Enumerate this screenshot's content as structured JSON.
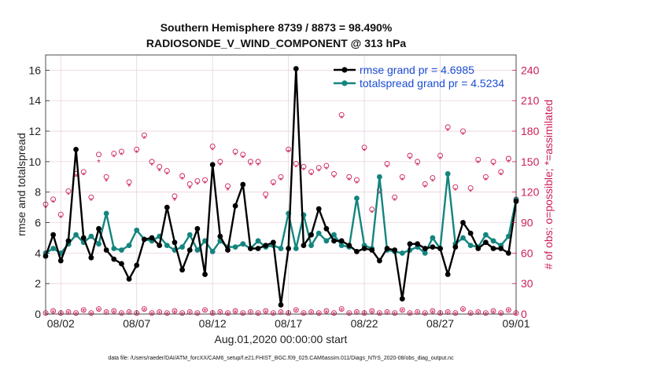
{
  "chart_data": {
    "type": "line",
    "title_line1": "Southern Hemisphere 8739 / 8873 = 98.490%",
    "title_line2": "RADIOSONDE_V_WIND_COMPONENT @ 313 hPa",
    "xlabel": "Aug.01,2020 00:00:00 start",
    "ylabel_left": "rmse and totalspread",
    "ylabel_right": "# of obs: o=possible; *=assimilated",
    "footer": "data file: /Users/raeder/DAI/ATM_forcXX/CAM6_setup/f.e21.FHIST_BGC.f09_025.CAM6assim.011/Diags_NTrS_2020-08/obs_diag_output.nc",
    "x_ticks": [
      "08/02",
      "08/07",
      "08/12",
      "08/17",
      "08/22",
      "08/27",
      "09/01"
    ],
    "x_tick_days": [
      1,
      6,
      11,
      16,
      21,
      26,
      31
    ],
    "xlim": [
      0,
      31
    ],
    "ylim_left": [
      0,
      17
    ],
    "y_ticks_left": [
      "0",
      "2",
      "4",
      "6",
      "8",
      "10",
      "12",
      "14",
      "16"
    ],
    "ylim_right": [
      0,
      255
    ],
    "y_ticks_right": [
      "0",
      "30",
      "60",
      "90",
      "120",
      "150",
      "180",
      "210",
      "240"
    ],
    "legend": {
      "rmse": "rmse grand pr = 4.6985",
      "spread": "totalspread grand pr = 4.5234"
    },
    "colors": {
      "rmse": "#000000",
      "spread": "#14857e",
      "obs": "#cc1f55"
    },
    "series": [
      {
        "name": "rmse",
        "x": [
          0.0,
          0.5,
          1.0,
          1.5,
          2.0,
          2.5,
          3.0,
          3.5,
          4.0,
          4.5,
          5.0,
          5.5,
          6.0,
          6.5,
          7.0,
          7.5,
          8.0,
          8.5,
          9.0,
          9.5,
          10.0,
          10.5,
          11.0,
          11.5,
          12.0,
          12.5,
          13.0,
          13.5,
          14.0,
          14.5,
          15.0,
          15.5,
          16.0,
          16.5,
          17.0,
          17.5,
          18.0,
          18.5,
          19.0,
          19.5,
          20.0,
          20.5,
          21.0,
          21.5,
          22.0,
          22.5,
          23.0,
          23.5,
          24.0,
          24.5,
          25.0,
          25.5,
          26.0,
          26.5,
          27.0,
          27.5,
          28.0,
          28.5,
          29.0,
          29.5,
          30.0,
          30.5,
          31.0
        ],
        "values": [
          3.8,
          5.2,
          3.5,
          4.8,
          10.8,
          5.0,
          3.7,
          5.6,
          4.2,
          3.6,
          3.3,
          2.3,
          3.2,
          4.9,
          5.0,
          4.5,
          7.0,
          4.7,
          2.9,
          4.2,
          5.6,
          2.6,
          9.8,
          5.1,
          4.2,
          7.1,
          8.5,
          4.3,
          4.3,
          4.5,
          4.7,
          0.6,
          4.3,
          16.1,
          4.5,
          5.2,
          6.9,
          5.6,
          4.8,
          4.8,
          4.5,
          4.1,
          4.3,
          4.2,
          3.5,
          4.3,
          4.2,
          1.0,
          4.6,
          4.6,
          4.3,
          4.4,
          4.3,
          2.6,
          4.4,
          6.0,
          5.3,
          4.3,
          4.7,
          4.3,
          4.3,
          4.0,
          7.4
        ]
      },
      {
        "name": "totalspread",
        "x": [
          0.0,
          0.5,
          1.0,
          1.5,
          2.0,
          2.5,
          3.0,
          3.5,
          4.0,
          4.5,
          5.0,
          5.5,
          6.0,
          6.5,
          7.0,
          7.5,
          8.0,
          8.5,
          9.0,
          9.5,
          10.0,
          10.5,
          11.0,
          11.5,
          12.0,
          12.5,
          13.0,
          13.5,
          14.0,
          14.5,
          15.0,
          15.5,
          16.0,
          16.5,
          17.0,
          17.5,
          18.0,
          18.5,
          19.0,
          19.5,
          20.0,
          20.5,
          21.0,
          21.5,
          22.0,
          22.5,
          23.0,
          23.5,
          24.0,
          24.5,
          25.0,
          25.5,
          26.0,
          26.5,
          27.0,
          27.5,
          28.0,
          28.5,
          29.0,
          29.5,
          30.0,
          30.5,
          31.0
        ],
        "values": [
          4.0,
          4.3,
          4.0,
          4.6,
          5.2,
          4.7,
          5.1,
          4.6,
          6.6,
          4.3,
          4.2,
          4.5,
          5.5,
          4.9,
          4.8,
          5.1,
          4.5,
          4.2,
          4.4,
          5.2,
          4.2,
          4.8,
          4.1,
          4.8,
          4.4,
          4.4,
          4.6,
          4.3,
          4.8,
          4.4,
          4.5,
          4.3,
          6.6,
          4.3,
          6.5,
          4.5,
          5.3,
          4.8,
          5.2,
          4.5,
          4.4,
          7.6,
          4.5,
          4.3,
          9.0,
          4.2,
          4.1,
          4.0,
          4.2,
          4.4,
          4.0,
          5.0,
          4.3,
          9.2,
          4.6,
          5.0,
          4.5,
          4.4,
          5.2,
          4.8,
          4.5,
          5.1,
          7.5
        ]
      },
      {
        "name": "obs_possible",
        "axis": "right",
        "x": [
          0.0,
          0.5,
          1.0,
          1.5,
          2.0,
          2.5,
          3.0,
          3.5,
          4.0,
          4.5,
          5.0,
          5.5,
          6.0,
          6.5,
          7.0,
          7.5,
          8.0,
          8.5,
          9.0,
          9.5,
          10.0,
          10.5,
          11.0,
          11.5,
          12.0,
          12.5,
          13.0,
          13.5,
          14.0,
          14.5,
          15.0,
          15.5,
          16.0,
          16.5,
          17.0,
          17.5,
          18.0,
          18.5,
          19.0,
          19.5,
          20.0,
          20.5,
          21.0,
          21.5,
          22.0,
          22.5,
          23.0,
          23.5,
          24.0,
          24.5,
          25.0,
          25.5,
          26.0,
          26.5,
          27.0,
          27.5,
          28.0,
          28.5,
          29.0,
          29.5,
          30.0,
          30.5,
          31.0
        ],
        "values": [
          108,
          113,
          98,
          121,
          138,
          140,
          115,
          157,
          135,
          158,
          160,
          130,
          162,
          176,
          150,
          145,
          141,
          116,
          136,
          128,
          131,
          132,
          165,
          150,
          126,
          160,
          157,
          150,
          150,
          118,
          130,
          135,
          162,
          148,
          145,
          140,
          144,
          146,
          138,
          196,
          135,
          132,
          164,
          103,
          122,
          148,
          115,
          135,
          156,
          150,
          128,
          134,
          156,
          184,
          125,
          180,
          124,
          152,
          135,
          150,
          140,
          153,
          113
        ]
      },
      {
        "name": "obs_assimilated",
        "axis": "right",
        "x": [
          0.0,
          0.5,
          1.0,
          1.5,
          2.0,
          2.5,
          3.0,
          3.5,
          4.0,
          4.5,
          5.0,
          5.5,
          6.0,
          6.5,
          7.0,
          7.5,
          8.0,
          8.5,
          9.0,
          9.5,
          10.0,
          10.5,
          11.0,
          11.5,
          12.0,
          12.5,
          13.0,
          13.5,
          14.0,
          14.5,
          15.0,
          15.5,
          16.0,
          16.5,
          17.0,
          17.5,
          18.0,
          18.5,
          19.0,
          19.5,
          20.0,
          20.5,
          21.0,
          21.5,
          22.0,
          22.5,
          23.0,
          23.5,
          24.0,
          24.5,
          25.0,
          25.5,
          26.0,
          26.5,
          27.0,
          27.5,
          28.0,
          28.5,
          29.0,
          29.5,
          30.0,
          30.5,
          31.0
        ],
        "values": [
          105,
          110,
          95,
          118,
          136,
          137,
          112,
          150,
          131,
          155,
          157,
          126,
          159,
          173,
          147,
          141,
          138,
          112,
          133,
          124,
          128,
          129,
          162,
          147,
          122,
          157,
          154,
          147,
          147,
          114,
          127,
          132,
          160,
          145,
          142,
          137,
          141,
          143,
          135,
          193,
          132,
          129,
          161,
          100,
          119,
          145,
          112,
          132,
          153,
          147,
          125,
          131,
          153,
          181,
          122,
          177,
          121,
          149,
          132,
          147,
          137,
          150,
          110
        ]
      },
      {
        "name": "obs_possible_low",
        "axis": "right",
        "x": [
          0.0,
          0.5,
          1.0,
          1.5,
          2.0,
          2.5,
          3.0,
          3.5,
          4.0,
          4.5,
          5.0,
          5.5,
          6.0,
          6.5,
          7.0,
          7.5,
          8.0,
          8.5,
          9.0,
          9.5,
          10.0,
          10.5,
          11.0,
          11.5,
          12.0,
          12.5,
          13.0,
          13.5,
          14.0,
          14.5,
          15.0,
          15.5,
          16.0,
          16.5,
          17.0,
          17.5,
          18.0,
          18.5,
          19.0,
          19.5,
          20.0,
          20.5,
          21.0,
          21.5,
          22.0,
          22.5,
          23.0,
          23.5,
          24.0,
          24.5,
          25.0,
          25.5,
          26.0,
          26.5,
          27.0,
          27.5,
          28.0,
          28.5,
          29.0,
          29.5,
          30.0,
          30.5,
          31.0
        ],
        "values": [
          1,
          3,
          1,
          2,
          1,
          4,
          1,
          5,
          2,
          3,
          1,
          2,
          1,
          5,
          1,
          2,
          1,
          3,
          1,
          2,
          1,
          4,
          1,
          2,
          1,
          3,
          1,
          2,
          1,
          3,
          1,
          2,
          1,
          4,
          1,
          2,
          1,
          3,
          1,
          5,
          1,
          2,
          1,
          3,
          1,
          2,
          1,
          4,
          1,
          2,
          1,
          3,
          1,
          2,
          1,
          5,
          1,
          2,
          1,
          3,
          1,
          4,
          1
        ]
      },
      {
        "name": "obs_assimilated_low",
        "axis": "right",
        "x": [
          0.0,
          0.5,
          1.0,
          1.5,
          2.0,
          2.5,
          3.0,
          3.5,
          4.0,
          4.5,
          5.0,
          5.5,
          6.0,
          6.5,
          7.0,
          7.5,
          8.0,
          8.5,
          9.0,
          9.5,
          10.0,
          10.5,
          11.0,
          11.5,
          12.0,
          12.5,
          13.0,
          13.5,
          14.0,
          14.5,
          15.0,
          15.5,
          16.0,
          16.5,
          17.0,
          17.5,
          18.0,
          18.5,
          19.0,
          19.5,
          20.0,
          20.5,
          21.0,
          21.5,
          22.0,
          22.5,
          23.0,
          23.5,
          24.0,
          24.5,
          25.0,
          25.5,
          26.0,
          26.5,
          27.0,
          27.5,
          28.0,
          28.5,
          29.0,
          29.5,
          30.0,
          30.5,
          31.0
        ],
        "values": [
          0,
          2,
          0,
          1,
          0,
          3,
          0,
          4,
          1,
          2,
          0,
          1,
          0,
          4,
          0,
          1,
          0,
          2,
          0,
          1,
          0,
          3,
          0,
          1,
          0,
          2,
          0,
          1,
          0,
          2,
          0,
          1,
          0,
          3,
          0,
          1,
          0,
          2,
          0,
          4,
          0,
          1,
          0,
          2,
          0,
          1,
          0,
          3,
          0,
          1,
          0,
          2,
          0,
          1,
          0,
          4,
          0,
          1,
          0,
          2,
          0,
          3,
          0
        ]
      }
    ],
    "grid": true,
    "legend_position": "top-right"
  }
}
